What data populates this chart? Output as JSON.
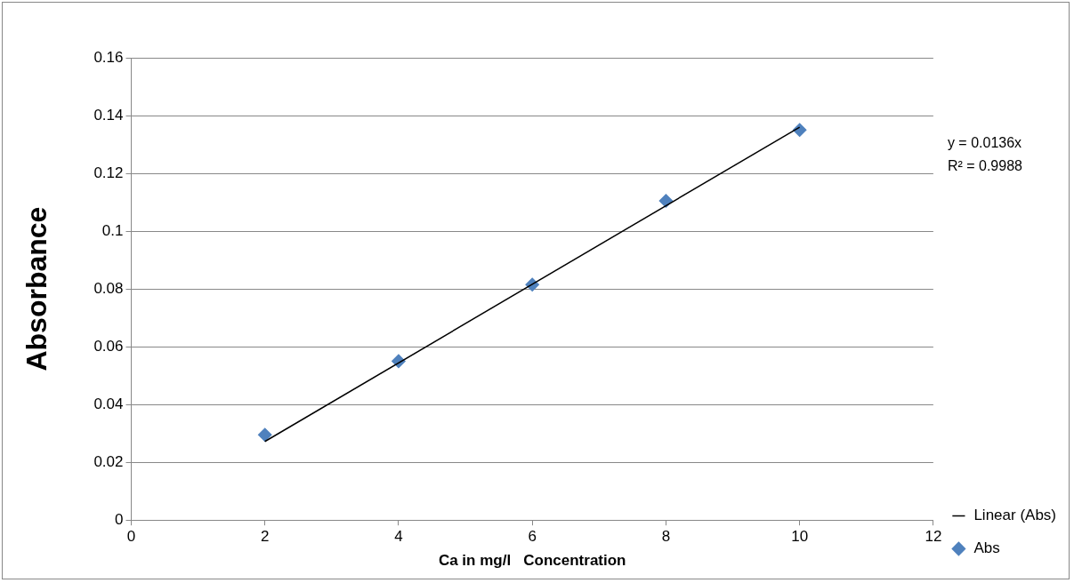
{
  "chart_data": {
    "type": "scatter",
    "xlabel": "Ca in mg/l   Concentration",
    "ylabel": "Absorbance",
    "xlim": [
      0,
      12
    ],
    "xticks": [
      0,
      2,
      4,
      6,
      8,
      10,
      12
    ],
    "ylim": [
      0,
      0.16
    ],
    "yticks": [
      0,
      0.02,
      0.04,
      0.06,
      0.08,
      0.1,
      0.12,
      0.14,
      0.16
    ],
    "grid": "y",
    "legend": "right",
    "marker": "diamond",
    "series": [
      {
        "name": "Abs",
        "type": "scatter",
        "color": "#4f81bd",
        "x": [
          2,
          4,
          6,
          8,
          10
        ],
        "values": [
          0.0295,
          0.055,
          0.0815,
          0.1105,
          0.135
        ]
      },
      {
        "name": "Linear (Abs)",
        "type": "line",
        "color": "#000000",
        "marker": "none",
        "line_style": "solid",
        "x": [
          2,
          10
        ],
        "values": [
          0.0272,
          0.136
        ]
      }
    ],
    "annotations": [
      "y = 0.0136x",
      "R² = 0.9988"
    ]
  }
}
